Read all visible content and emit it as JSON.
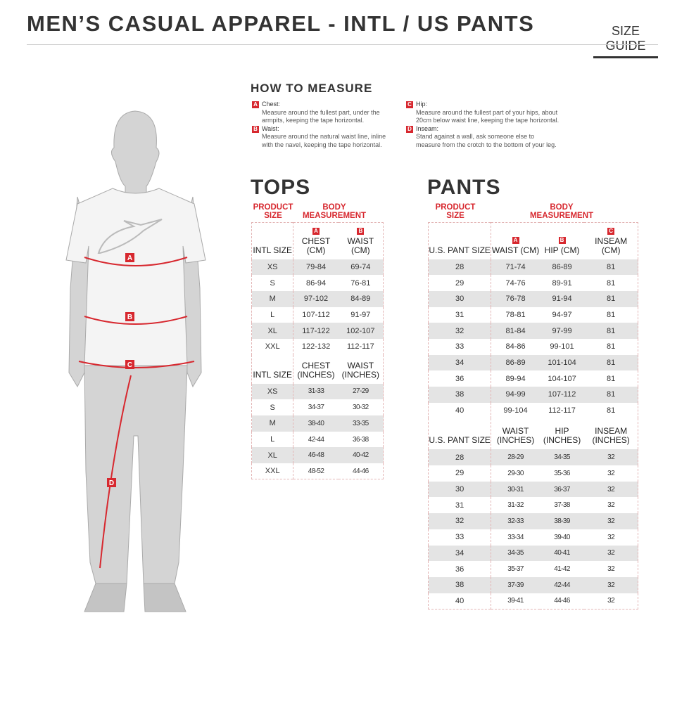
{
  "header": {
    "title": "MEN’S CASUAL APPAREL - INTL / US PANTS",
    "link": "SIZE GUIDE"
  },
  "how_to_measure": {
    "title": "HOW TO MEASURE",
    "items": [
      {
        "badge": "A",
        "label": "Chest:",
        "text": "Measure around the fullest part, under the armpits, keeping the tape horizontal."
      },
      {
        "badge": "B",
        "label": "Waist:",
        "text": "Measure around the natural waist line, inline with the navel, keeping the tape horizontal."
      },
      {
        "badge": "C",
        "label": "Hip:",
        "text": "Measure around the fullest part of your hips, about 20cm below waist line, keeping the tape horizontal."
      },
      {
        "badge": "D",
        "label": "Inseam:",
        "text": "Stand against a wall, ask someone else to measure from the crotch to the bottom of your leg."
      }
    ]
  },
  "figure": {
    "markers": [
      "A",
      "B",
      "C",
      "D"
    ]
  },
  "accent_color": "#d7282f",
  "tops": {
    "title": "TOPS",
    "product_size": "PRODUCT SIZE",
    "body_measurement": "BODY MEASUREMENT",
    "cm": {
      "headers": [
        "INTL SIZE",
        "CHEST (CM)",
        "WAIST (CM)"
      ],
      "badges": [
        "",
        "A",
        "B"
      ],
      "rows": [
        [
          "XS",
          "79-84",
          "69-74"
        ],
        [
          "S",
          "86-94",
          "76-81"
        ],
        [
          "M",
          "97-102",
          "84-89"
        ],
        [
          "L",
          "107-112",
          "91-97"
        ],
        [
          "XL",
          "117-122",
          "102-107"
        ],
        [
          "XXL",
          "122-132",
          "112-117"
        ]
      ]
    },
    "inches": {
      "headers": [
        "INTL SIZE",
        "CHEST (INCHES)",
        "WAIST (INCHES)"
      ],
      "rows": [
        [
          "XS",
          "31-33",
          "27-29"
        ],
        [
          "S",
          "34-37",
          "30-32"
        ],
        [
          "M",
          "38-40",
          "33-35"
        ],
        [
          "L",
          "42-44",
          "36-38"
        ],
        [
          "XL",
          "46-48",
          "40-42"
        ],
        [
          "XXL",
          "48-52",
          "44-46"
        ]
      ]
    }
  },
  "pants": {
    "title": "PANTS",
    "product_size": "PRODUCT SIZE",
    "body_measurement": "BODY MEASUREMENT",
    "cm": {
      "headers": [
        "U.S. PANT SIZE",
        "WAIST (CM)",
        "HIP (CM)",
        "INSEAM (CM)"
      ],
      "badges": [
        "",
        "A",
        "B",
        "C"
      ],
      "rows": [
        [
          "28",
          "71-74",
          "86-89",
          "81"
        ],
        [
          "29",
          "74-76",
          "89-91",
          "81"
        ],
        [
          "30",
          "76-78",
          "91-94",
          "81"
        ],
        [
          "31",
          "78-81",
          "94-97",
          "81"
        ],
        [
          "32",
          "81-84",
          "97-99",
          "81"
        ],
        [
          "33",
          "84-86",
          "99-101",
          "81"
        ],
        [
          "34",
          "86-89",
          "101-104",
          "81"
        ],
        [
          "36",
          "89-94",
          "104-107",
          "81"
        ],
        [
          "38",
          "94-99",
          "107-112",
          "81"
        ],
        [
          "40",
          "99-104",
          "112-117",
          "81"
        ]
      ]
    },
    "inches": {
      "headers": [
        "U.S. PANT SIZE",
        "WAIST (INCHES)",
        "HIP (INCHES)",
        "INSEAM (INCHES)"
      ],
      "rows": [
        [
          "28",
          "28-29",
          "34-35",
          "32"
        ],
        [
          "29",
          "29-30",
          "35-36",
          "32"
        ],
        [
          "30",
          "30-31",
          "36-37",
          "32"
        ],
        [
          "31",
          "31-32",
          "37-38",
          "32"
        ],
        [
          "32",
          "32-33",
          "38-39",
          "32"
        ],
        [
          "33",
          "33-34",
          "39-40",
          "32"
        ],
        [
          "34",
          "34-35",
          "40-41",
          "32"
        ],
        [
          "36",
          "35-37",
          "41-42",
          "32"
        ],
        [
          "38",
          "37-39",
          "42-44",
          "32"
        ],
        [
          "40",
          "39-41",
          "44-46",
          "32"
        ]
      ]
    }
  }
}
